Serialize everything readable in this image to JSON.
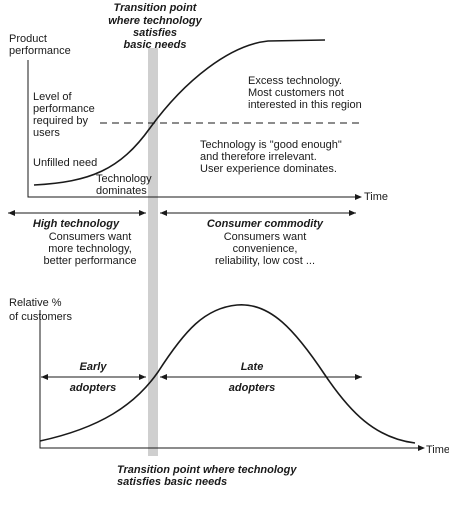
{
  "top_note": {
    "line1": "Transition point",
    "line2": "where technology",
    "line3": "satisfies",
    "line4": "basic needs"
  },
  "bottom_note": {
    "line1": "Transition point where technology",
    "line2": "satisfies basic needs"
  },
  "upper_chart": {
    "y_label_1": "Product",
    "y_label_2": "performance",
    "x_label": "Time",
    "level_label": [
      "Level of",
      "performance",
      "required by",
      "users"
    ],
    "unfilled_need": "Unfilled need",
    "tech_dominates": [
      "Technology",
      "dominates"
    ],
    "excess": [
      "Excess technology.",
      "Most customers not",
      "interested in this region"
    ],
    "good_enough": [
      "Technology is \"good enough\"",
      "and therefore irrelevant.",
      "User experience dominates."
    ],
    "left_phase": {
      "title": "High technology",
      "lines": [
        "Consumers want",
        "more technology,",
        "better performance"
      ]
    },
    "right_phase": {
      "title": "Consumer commodity",
      "lines": [
        "Consumers want",
        "convenience,",
        "reliability, low cost ..."
      ]
    }
  },
  "lower_chart": {
    "y_label_1": "Relative %",
    "y_label_2": "of customers",
    "x_label": "Time",
    "early": "Early",
    "late": "Late",
    "adopters_left": "adopters",
    "adopters_right": "adopters"
  },
  "colors": {
    "transition_band": "#cfcfcf",
    "ink": "#1a1a1a"
  }
}
